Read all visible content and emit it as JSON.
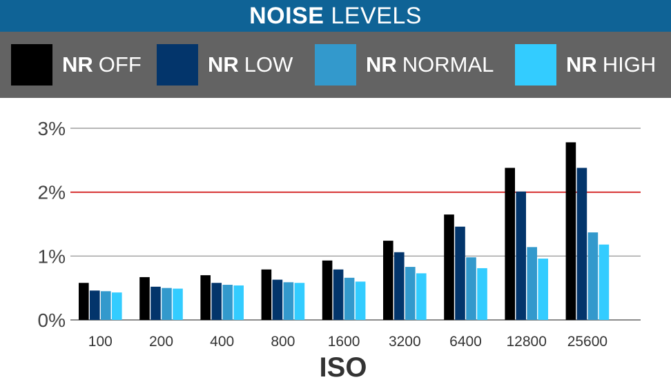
{
  "title": {
    "bold": "NOISE",
    "rest": "LEVELS"
  },
  "legend": [
    {
      "bold": "NR",
      "rest": "OFF",
      "color": "#000000"
    },
    {
      "bold": "NR",
      "rest": "LOW",
      "color": "#03356b"
    },
    {
      "bold": "NR",
      "rest": "NORMAL",
      "color": "#3399cc"
    },
    {
      "bold": "NR",
      "rest": "HIGH",
      "color": "#33ccff"
    }
  ],
  "chart_data": {
    "type": "bar",
    "xlabel": "ISO",
    "ylabel": "",
    "ylim": [
      0,
      3
    ],
    "yticks": [
      "0%",
      "1%",
      "2%",
      "3%"
    ],
    "reference_line": {
      "value": 2,
      "color": "#cc0000"
    },
    "categories": [
      "100",
      "200",
      "400",
      "800",
      "1600",
      "3200",
      "6400",
      "12800",
      "25600"
    ],
    "series": [
      {
        "name": "NR OFF",
        "color": "#000000",
        "values": [
          0.58,
          0.67,
          0.7,
          0.79,
          0.93,
          1.24,
          1.65,
          2.38,
          2.78
        ]
      },
      {
        "name": "NR LOW",
        "color": "#03356b",
        "values": [
          0.46,
          0.52,
          0.58,
          0.63,
          0.79,
          1.06,
          1.46,
          2.01,
          2.38
        ]
      },
      {
        "name": "NR NORMAL",
        "color": "#3399cc",
        "values": [
          0.45,
          0.5,
          0.55,
          0.59,
          0.66,
          0.83,
          0.98,
          1.14,
          1.37
        ]
      },
      {
        "name": "NR HIGH",
        "color": "#33ccff",
        "values": [
          0.43,
          0.49,
          0.54,
          0.58,
          0.6,
          0.73,
          0.81,
          0.96,
          1.18
        ]
      }
    ]
  }
}
